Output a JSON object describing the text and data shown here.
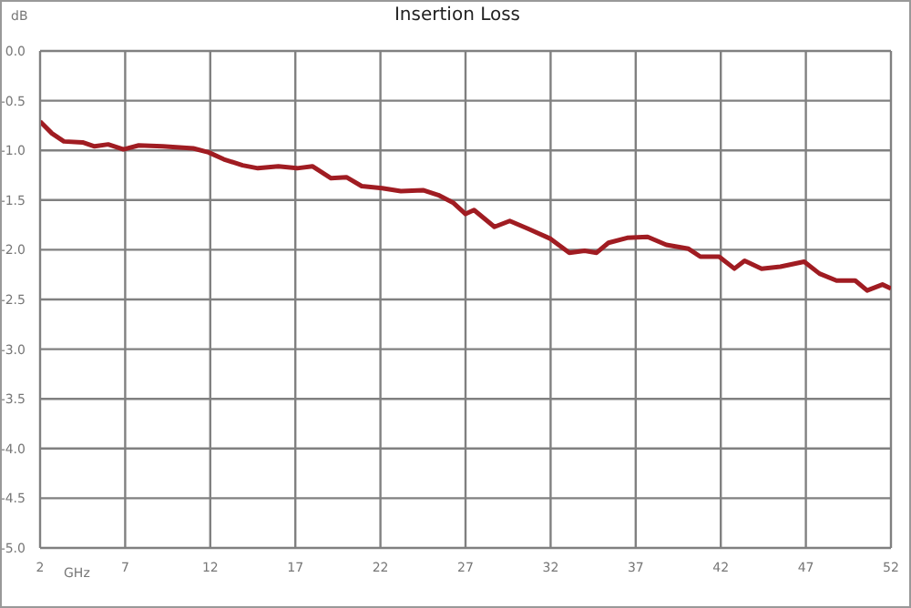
{
  "chart_data": {
    "type": "line",
    "title": "Insertion Loss",
    "xlabel": "GHz",
    "ylabel": "dB",
    "xlim": [
      2,
      52
    ],
    "xticks": [
      2,
      7,
      12,
      17,
      22,
      27,
      32,
      37,
      42,
      47,
      52
    ],
    "ylim": [
      -5,
      0
    ],
    "yticks": [
      {
        "value": 0,
        "label": "0.0"
      },
      -0.5,
      {
        "value": -1,
        "label": "-1.0"
      },
      -1.5,
      {
        "value": -2,
        "label": "-2.0"
      },
      -2.5,
      {
        "value": -3,
        "label": "-3.0"
      },
      -3.5,
      {
        "value": -4,
        "label": "-4.0"
      },
      -4.5,
      {
        "value": -5,
        "label": "-5.0"
      }
    ],
    "grid": true,
    "marker": "none",
    "line_style": "solid",
    "series": [
      {
        "color": "#a01c22",
        "x": [
          2,
          2.7,
          3.4,
          4.5,
          5.2,
          6,
          6.9,
          7.8,
          9.2,
          11,
          11.9,
          12.8,
          13.9,
          14.8,
          16,
          17.1,
          18,
          19.1,
          20,
          20.9,
          22.1,
          23.2,
          24.5,
          25.4,
          26.3,
          27,
          27.5,
          28.7,
          29.6,
          30.7,
          32,
          33.1,
          34,
          34.7,
          35.4,
          36.5,
          37.7,
          38.8,
          40.1,
          40.8,
          41.9,
          42.8,
          43.4,
          44.4,
          45.5,
          46.9,
          47.8,
          48.8,
          49.9,
          50.6,
          51.5,
          52
        ],
        "values": [
          -0.71,
          -0.83,
          -0.91,
          -0.92,
          -0.96,
          -0.94,
          -0.99,
          -0.95,
          -0.96,
          -0.98,
          -1.02,
          -1.09,
          -1.15,
          -1.18,
          -1.16,
          -1.18,
          -1.16,
          -1.28,
          -1.27,
          -1.36,
          -1.38,
          -1.41,
          -1.4,
          -1.45,
          -1.53,
          -1.64,
          -1.6,
          -1.77,
          -1.71,
          -1.79,
          -1.89,
          -2.03,
          -2.01,
          -2.03,
          -1.93,
          -1.88,
          -1.87,
          -1.95,
          -1.99,
          -2.07,
          -2.07,
          -2.19,
          -2.11,
          -2.19,
          -2.17,
          -2.12,
          -2.24,
          -2.31,
          -2.31,
          -2.41,
          -2.35,
          -2.39
        ]
      }
    ]
  }
}
